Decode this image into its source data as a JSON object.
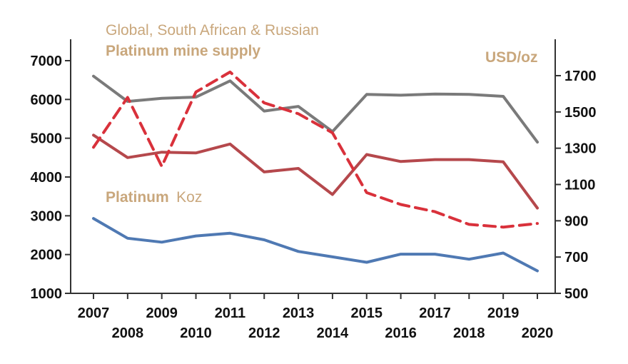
{
  "chart_data": {
    "type": "line",
    "title": "",
    "annotations": {
      "header_line1": "Global, South African & Russian",
      "header_line2": "Platinum mine supply",
      "left_label_bold": "Platinum",
      "left_label_light": "Koz",
      "right_unit": "USD/oz"
    },
    "x": [
      2007,
      2008,
      2009,
      2010,
      2011,
      2012,
      2013,
      2014,
      2015,
      2016,
      2017,
      2018,
      2019,
      2020
    ],
    "x_tick_labels": [
      "2007",
      "2008",
      "2009",
      "2010",
      "2011",
      "2012",
      "2013",
      "2014",
      "2015",
      "2016",
      "2017",
      "2018",
      "2019",
      "2020"
    ],
    "y_left": {
      "ylim": [
        1000,
        7000
      ],
      "ticks": [
        "1000",
        "2000",
        "3000",
        "4000",
        "5000",
        "6000",
        "7000"
      ]
    },
    "y_right": {
      "ylim": [
        500,
        1800
      ],
      "ticks": [
        "500",
        "700",
        "900",
        "1100",
        "1300",
        "1500",
        "1700"
      ]
    },
    "grid": false,
    "legend": "none",
    "series": [
      {
        "axis": "left",
        "color": "#7a7a7a",
        "dash": false,
        "values": [
          6600,
          5950,
          6030,
          6060,
          6480,
          5700,
          5820,
          5170,
          6130,
          6110,
          6140,
          6130,
          6080,
          4900
        ]
      },
      {
        "axis": "left",
        "color": "#b5484c",
        "dash": false,
        "values": [
          5080,
          4500,
          4640,
          4620,
          4850,
          4130,
          4220,
          3550,
          4580,
          4400,
          4450,
          4450,
          4390,
          3200
        ]
      },
      {
        "axis": "left",
        "color": "#4f79b3",
        "dash": false,
        "values": [
          2930,
          2420,
          2320,
          2480,
          2550,
          2380,
          2080,
          1940,
          1800,
          2010,
          2010,
          1880,
          2040,
          1580
        ]
      },
      {
        "axis": "right",
        "color": "#d9313b",
        "dash": true,
        "values": [
          1305,
          1580,
          1200,
          1610,
          1720,
          1550,
          1490,
          1385,
          1055,
          990,
          950,
          880,
          865,
          885
        ]
      }
    ]
  }
}
